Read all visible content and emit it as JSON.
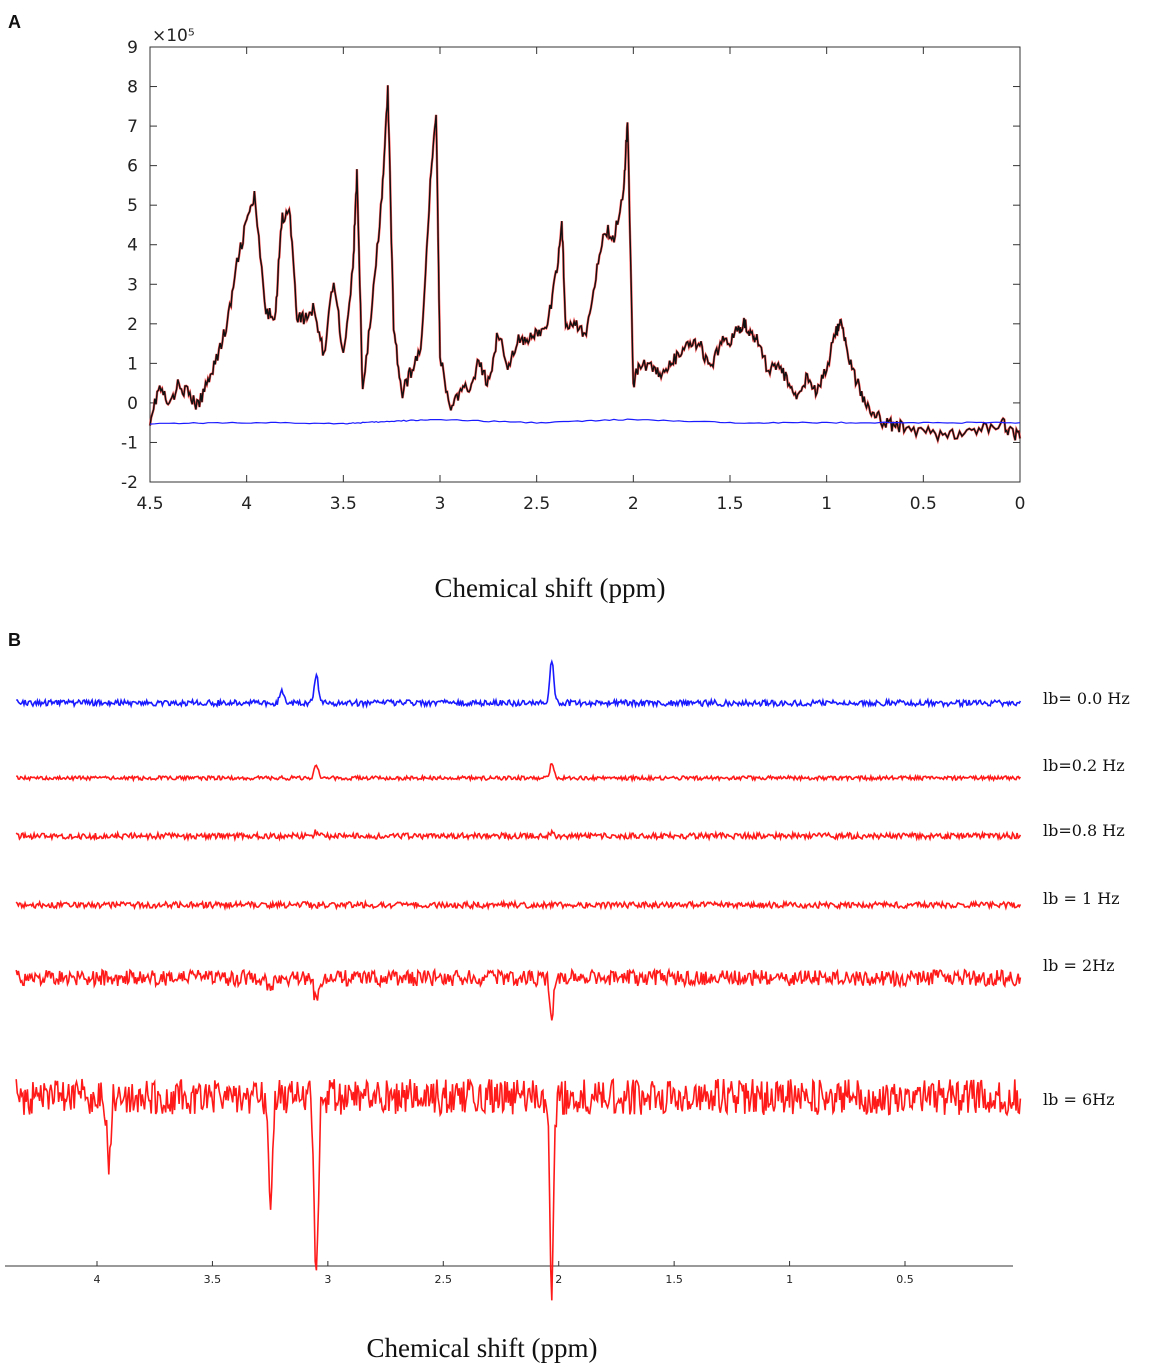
{
  "panels": {
    "a_letter": "A",
    "b_letter": "B"
  },
  "chart_data": [
    {
      "id": "A",
      "type": "line",
      "xlabel": "Chemical shift  (ppm)",
      "ylabel": "",
      "y_multiplier": "×10⁵",
      "x_reversed": true,
      "xlim": [
        4.5,
        0
      ],
      "ylim": [
        -2,
        9
      ],
      "x_ticks": [
        "4.5",
        "4",
        "3.5",
        "3",
        "2.5",
        "2",
        "1.5",
        "1",
        "0.5",
        "0"
      ],
      "x_tick_values": [
        4.5,
        4,
        3.5,
        3,
        2.5,
        2,
        1.5,
        1,
        0.5,
        0
      ],
      "y_ticks": [
        "-2",
        "-1",
        "0",
        "1",
        "2",
        "3",
        "4",
        "5",
        "6",
        "7",
        "8",
        "9"
      ],
      "y_tick_values": [
        -2,
        -1,
        0,
        1,
        2,
        3,
        4,
        5,
        6,
        7,
        8,
        9
      ],
      "series": [
        {
          "color": "#111111",
          "x": [
            4.5,
            4.45,
            4.4,
            4.35,
            4.3,
            4.25,
            4.2,
            4.15,
            4.1,
            4.05,
            4.0,
            3.96,
            3.9,
            3.85,
            3.82,
            3.78,
            3.74,
            3.7,
            3.65,
            3.6,
            3.55,
            3.5,
            3.45,
            3.43,
            3.4,
            3.35,
            3.3,
            3.27,
            3.24,
            3.2,
            3.15,
            3.1,
            3.05,
            3.02,
            3.0,
            2.95,
            2.9,
            2.85,
            2.8,
            2.75,
            2.7,
            2.65,
            2.6,
            2.55,
            2.5,
            2.45,
            2.4,
            2.37,
            2.35,
            2.3,
            2.25,
            2.2,
            2.15,
            2.1,
            2.05,
            2.03,
            2.0,
            1.97,
            1.9,
            1.85,
            1.8,
            1.75,
            1.7,
            1.65,
            1.6,
            1.55,
            1.5,
            1.45,
            1.42,
            1.38,
            1.35,
            1.3,
            1.25,
            1.2,
            1.15,
            1.1,
            1.05,
            1.0,
            0.95,
            0.93,
            0.9,
            0.85,
            0.8,
            0.75,
            0.7,
            0.65,
            0.6,
            0.5,
            0.4,
            0.3,
            0.2,
            0.1,
            0.05,
            0.0
          ],
          "values": [
            -0.4,
            0.4,
            -0.1,
            0.5,
            0.2,
            -0.1,
            0.6,
            1.2,
            2.0,
            3.5,
            4.6,
            5.2,
            2.2,
            2.3,
            4.6,
            5.0,
            2.2,
            2.1,
            2.4,
            1.2,
            3.2,
            1.2,
            3.4,
            5.8,
            0.3,
            2.5,
            5.2,
            7.9,
            2.0,
            0.2,
            0.8,
            1.3,
            5.5,
            7.4,
            1.2,
            -0.1,
            0.2,
            0.4,
            1.0,
            0.5,
            1.8,
            0.9,
            1.6,
            1.5,
            1.8,
            1.8,
            3.2,
            4.6,
            2.0,
            2.1,
            1.6,
            3.0,
            4.4,
            4.2,
            5.3,
            7.2,
            0.5,
            1.0,
            0.9,
            0.7,
            1.0,
            1.3,
            1.5,
            1.4,
            0.8,
            1.5,
            1.6,
            1.9,
            2.0,
            1.7,
            1.5,
            0.8,
            1.0,
            0.5,
            0.2,
            0.7,
            0.2,
            0.9,
            1.8,
            2.1,
            1.4,
            0.6,
            0.0,
            -0.3,
            -0.5,
            -0.6,
            -0.6,
            -0.7,
            -0.8,
            -0.8,
            -0.7,
            -0.5,
            -0.7,
            -0.9
          ]
        },
        {
          "color": "#1a1aff",
          "x": [
            4.5,
            4.0,
            3.5,
            3.3,
            3.05,
            2.5,
            2.03,
            1.5,
            1.0,
            0.5,
            0.0
          ],
          "values": [
            -0.52,
            -0.5,
            -0.52,
            -0.48,
            -0.42,
            -0.5,
            -0.42,
            -0.5,
            -0.5,
            -0.5,
            -0.5
          ]
        }
      ]
    },
    {
      "id": "B",
      "type": "line",
      "xlabel": "Chemical shift  (ppm)",
      "x_reversed": true,
      "x_ticks": [
        "4",
        "3.5",
        "3",
        "2.5",
        "2",
        "1.5",
        "1",
        "0.5"
      ],
      "x_tick_values": [
        4,
        3.5,
        3,
        2.5,
        2,
        1.5,
        1,
        0.5
      ],
      "series": [
        {
          "name": "lb= 0.0 Hz",
          "color": "#1a1aff",
          "peaks": [
            {
              "x": 3.05,
              "height": 1.0
            },
            {
              "x": 2.03,
              "height": 1.4
            },
            {
              "x": 3.2,
              "height": 0.4
            }
          ]
        },
        {
          "name": "lb=0.2 Hz",
          "color": "#ff1a1a",
          "peaks": [
            {
              "x": 3.05,
              "height": 0.5
            },
            {
              "x": 2.03,
              "height": 0.5
            }
          ]
        },
        {
          "name": "lb=0.8 Hz",
          "color": "#ff1a1a",
          "peaks": [
            {
              "x": 3.05,
              "height": 0.2
            },
            {
              "x": 2.03,
              "height": 0.2
            }
          ]
        },
        {
          "name": "lb = 1 Hz",
          "color": "#ff1a1a",
          "peaks": []
        },
        {
          "name": "lb = 2Hz",
          "color": "#ff1a1a",
          "peaks": [
            {
              "x": 3.05,
              "height": -1.2
            },
            {
              "x": 2.03,
              "height": -1.6
            },
            {
              "x": 3.25,
              "height": -0.6
            }
          ]
        },
        {
          "name": "lb = 6Hz",
          "color": "#ff1a1a",
          "peaks": [
            {
              "x": 3.05,
              "height": -4.5
            },
            {
              "x": 2.03,
              "height": -4.6
            },
            {
              "x": 3.25,
              "height": -2.6
            },
            {
              "x": 3.95,
              "height": -1.6
            }
          ]
        }
      ]
    }
  ]
}
